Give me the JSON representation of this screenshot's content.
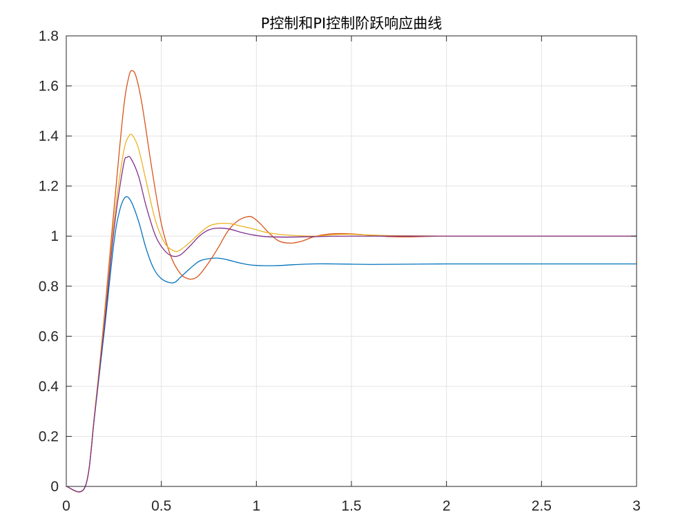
{
  "chart_data": {
    "type": "line",
    "title": "P控制和PI控制阶跃响应曲线",
    "xlabel": "",
    "ylabel": "",
    "xlim": [
      0,
      3
    ],
    "ylim": [
      0,
      1.8
    ],
    "grid": true,
    "xticks": [
      0,
      0.5,
      1,
      1.5,
      2,
      2.5,
      3
    ],
    "xtick_labels": [
      "0",
      "0.5",
      "1",
      "1.5",
      "2",
      "2.5",
      "3"
    ],
    "yticks": [
      0,
      0.2,
      0.4,
      0.6,
      0.8,
      1.0,
      1.2,
      1.4,
      1.6,
      1.8
    ],
    "ytick_labels": [
      "0",
      "0.2",
      "0.4",
      "0.6",
      "0.8",
      "1",
      "1.2",
      "1.4",
      "1.6",
      "1.8"
    ],
    "series": [
      {
        "color": "#0072BD",
        "x": [
          0,
          0.1,
          0.15,
          0.2,
          0.25,
          0.28,
          0.31,
          0.34,
          0.38,
          0.42,
          0.46,
          0.5,
          0.54,
          0.57,
          0.6,
          0.65,
          0.7,
          0.75,
          0.8,
          0.85,
          0.9,
          0.95,
          1.0,
          1.1,
          1.2,
          1.3,
          1.4,
          1.5,
          1.6,
          1.8,
          2.0,
          2.2,
          2.5,
          2.8,
          3.0
        ],
        "y": [
          0,
          0,
          0.29,
          0.62,
          0.97,
          1.1,
          1.155,
          1.14,
          1.06,
          0.95,
          0.87,
          0.83,
          0.815,
          0.815,
          0.835,
          0.87,
          0.9,
          0.91,
          0.912,
          0.905,
          0.895,
          0.887,
          0.883,
          0.882,
          0.886,
          0.889,
          0.889,
          0.888,
          0.887,
          0.888,
          0.889,
          0.889,
          0.889,
          0.889,
          0.889
        ]
      },
      {
        "color": "#D95319",
        "x": [
          0,
          0.1,
          0.15,
          0.2,
          0.25,
          0.3,
          0.33,
          0.35,
          0.37,
          0.4,
          0.45,
          0.5,
          0.55,
          0.6,
          0.64,
          0.67,
          0.7,
          0.75,
          0.8,
          0.85,
          0.9,
          0.95,
          0.98,
          1.02,
          1.07,
          1.12,
          1.18,
          1.24,
          1.3,
          1.38,
          1.46,
          1.54,
          1.6,
          1.7,
          1.8,
          1.9,
          2.0,
          2.2,
          2.5,
          2.8,
          3.0
        ],
        "y": [
          0,
          0,
          0.3,
          0.68,
          1.1,
          1.5,
          1.64,
          1.66,
          1.63,
          1.52,
          1.27,
          1.05,
          0.92,
          0.85,
          0.83,
          0.83,
          0.845,
          0.895,
          0.955,
          1.02,
          1.06,
          1.077,
          1.075,
          1.05,
          1.01,
          0.98,
          0.972,
          0.98,
          0.997,
          1.008,
          1.01,
          1.007,
          1.003,
          0.998,
          0.997,
          0.999,
          1.0,
          1.0,
          1.0,
          1.0,
          1.0
        ]
      },
      {
        "color": "#EDB120",
        "x": [
          0,
          0.1,
          0.15,
          0.2,
          0.25,
          0.3,
          0.33,
          0.35,
          0.38,
          0.42,
          0.47,
          0.52,
          0.57,
          0.6,
          0.65,
          0.7,
          0.75,
          0.8,
          0.86,
          0.92,
          0.98,
          1.05,
          1.15,
          1.3,
          1.4,
          1.5,
          1.7,
          2.0,
          2.5,
          3.0
        ],
        "y": [
          0,
          0,
          0.3,
          0.66,
          1.05,
          1.33,
          1.4,
          1.4,
          1.35,
          1.22,
          1.06,
          0.97,
          0.94,
          0.945,
          0.975,
          1.01,
          1.04,
          1.05,
          1.05,
          1.04,
          1.03,
          1.015,
          1.005,
          1.0,
          1.005,
          1.007,
          1.002,
          1.0,
          1.0,
          1.0
        ]
      },
      {
        "color": "#7E2F8E",
        "x": [
          0,
          0.1,
          0.15,
          0.2,
          0.25,
          0.3,
          0.32,
          0.34,
          0.38,
          0.42,
          0.47,
          0.52,
          0.56,
          0.6,
          0.65,
          0.7,
          0.75,
          0.8,
          0.86,
          0.92,
          0.98,
          1.05,
          1.15,
          1.3,
          1.5,
          2.0,
          2.5,
          3.0
        ],
        "y": [
          0,
          0,
          0.29,
          0.64,
          1.02,
          1.28,
          1.315,
          1.31,
          1.24,
          1.12,
          1.0,
          0.94,
          0.92,
          0.925,
          0.96,
          1.0,
          1.025,
          1.032,
          1.028,
          1.015,
          1.005,
          0.998,
          0.996,
          0.998,
          1.0,
          1.0,
          1.0,
          1.0
        ]
      }
    ]
  }
}
